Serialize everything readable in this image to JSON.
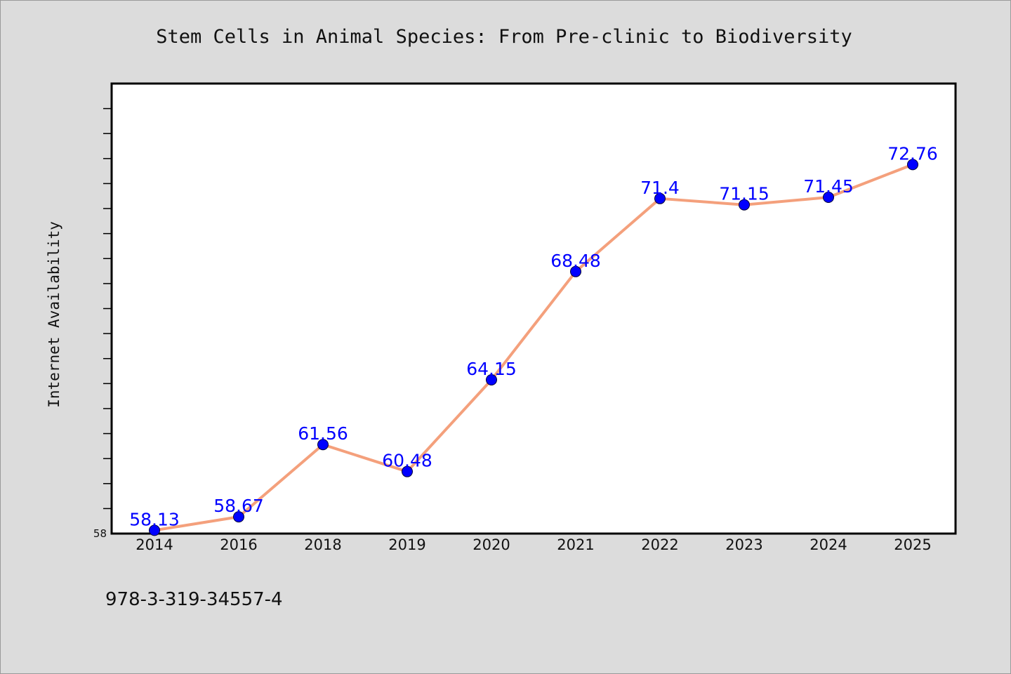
{
  "footer_text": "978-3-319-34557-4",
  "chart_data": {
    "type": "line",
    "title": "Stem Cells in Animal Species: From Pre-clinic to Biodiversity",
    "xlabel": "",
    "ylabel": "Internet Availability",
    "categories": [
      "2014",
      "2016",
      "2018",
      "2019",
      "2020",
      "2021",
      "2022",
      "2023",
      "2024",
      "2025"
    ],
    "values": [
      58.13,
      58.67,
      61.56,
      60.48,
      64.15,
      68.48,
      71.4,
      71.15,
      71.45,
      72.76
    ],
    "data_labels": [
      "58.13",
      "58.67",
      "61.56",
      "60.48",
      "64.15",
      "68.48",
      "71.4",
      "71.15",
      "71.45",
      "72.76"
    ],
    "ylim": [
      58,
      76
    ],
    "ytick_labels": [
      "58"
    ],
    "grid": false,
    "legend": "none",
    "colors": {
      "line": "#f4a07c",
      "marker": "#0000ff",
      "data_label": "#0000ff",
      "plot_background": "#ffffff",
      "page_background": "#dcdcdc"
    }
  }
}
